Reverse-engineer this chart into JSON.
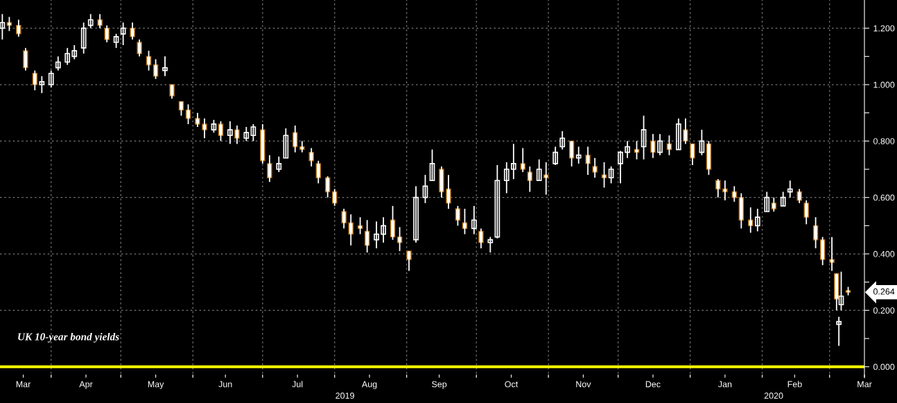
{
  "chart_data": {
    "type": "candlestick",
    "color": "#ffffff",
    "grid": true,
    "annotations": [
      "UK 10-year bond yields",
      {
        "text": "0.264",
        "x": "2020-03-09",
        "y": 0.264
      },
      "2019",
      "2020"
    ],
    "ref_lines": [
      {
        "axis": "y",
        "value": 0,
        "color": "#ffff00"
      }
    ],
    "xlim": [
      "2019-03-10",
      "2020-03-16"
    ],
    "ylim": [
      -0.04,
      1.3
    ],
    "yticks": [
      {
        "value": 0,
        "label": "0.000"
      },
      {
        "value": 0.1,
        "label": null
      },
      {
        "value": 0.2,
        "label": "0.200"
      },
      {
        "value": 0.3,
        "label": null
      },
      {
        "value": 0.4,
        "label": "0.400"
      },
      {
        "value": 0.5,
        "label": null
      },
      {
        "value": 0.6,
        "label": "0.600"
      },
      {
        "value": 0.7,
        "label": null
      },
      {
        "value": 0.8,
        "label": "0.800"
      },
      {
        "value": 0.9,
        "label": null
      },
      {
        "value": 1.0,
        "label": "1.000"
      },
      {
        "value": 1.1,
        "label": null
      },
      {
        "value": 1.2,
        "label": "1.200"
      }
    ],
    "xticks": [
      {
        "value": "2019-03-20",
        "label": "Mar"
      },
      {
        "value": "2019-04-01",
        "label": null
      },
      {
        "value": "2019-04-16",
        "label": "Apr"
      },
      {
        "value": "2019-05-01",
        "label": null
      },
      {
        "value": "2019-05-16",
        "label": "May"
      },
      {
        "value": "2019-06-01",
        "label": null
      },
      {
        "value": "2019-06-15",
        "label": "Jun"
      },
      {
        "value": "2019-07-01",
        "label": null
      },
      {
        "value": "2019-07-16",
        "label": "Jul"
      },
      {
        "value": "2019-08-01",
        "label": null
      },
      {
        "value": "2019-08-16",
        "label": "Aug"
      },
      {
        "value": "2019-09-01",
        "label": null
      },
      {
        "value": "2019-09-15",
        "label": "Sep"
      },
      {
        "value": "2019-10-01",
        "label": null
      },
      {
        "value": "2019-10-16",
        "label": "Oct"
      },
      {
        "value": "2019-11-01",
        "label": null
      },
      {
        "value": "2019-11-16",
        "label": "Nov"
      },
      {
        "value": "2019-12-01",
        "label": null
      },
      {
        "value": "2019-12-16",
        "label": "Dec"
      },
      {
        "value": "2020-01-01",
        "label": null
      },
      {
        "value": "2020-01-16",
        "label": "Jan"
      },
      {
        "value": "2020-02-01",
        "label": null
      },
      {
        "value": "2020-02-15",
        "label": "Feb"
      },
      {
        "value": "2020-03-01",
        "label": null
      },
      {
        "value": "2020-03-16",
        "label": "Mar"
      }
    ],
    "x": [
      "2019-03-11",
      "2019-03-14",
      "2019-03-18",
      "2019-03-21",
      "2019-03-25",
      "2019-03-28",
      "2019-04-01",
      "2019-04-04",
      "2019-04-08",
      "2019-04-11",
      "2019-04-15",
      "2019-04-18",
      "2019-04-22",
      "2019-04-25",
      "2019-04-29",
      "2019-05-02",
      "2019-05-06",
      "2019-05-09",
      "2019-05-13",
      "2019-05-16",
      "2019-05-20",
      "2019-05-23",
      "2019-05-27",
      "2019-05-30",
      "2019-06-03",
      "2019-06-06",
      "2019-06-10",
      "2019-06-13",
      "2019-06-17",
      "2019-06-20",
      "2019-06-24",
      "2019-06-27",
      "2019-07-01",
      "2019-07-04",
      "2019-07-08",
      "2019-07-11",
      "2019-07-15",
      "2019-07-18",
      "2019-07-22",
      "2019-07-25",
      "2019-07-29",
      "2019-08-01",
      "2019-08-05",
      "2019-08-08",
      "2019-08-12",
      "2019-08-15",
      "2019-08-19",
      "2019-08-22",
      "2019-08-26",
      "2019-08-29",
      "2019-09-02",
      "2019-09-05",
      "2019-09-09",
      "2019-09-12",
      "2019-09-16",
      "2019-09-19",
      "2019-09-23",
      "2019-09-26",
      "2019-09-30",
      "2019-10-03",
      "2019-10-07",
      "2019-10-10",
      "2019-10-14",
      "2019-10-17",
      "2019-10-21",
      "2019-10-24",
      "2019-10-28",
      "2019-10-31",
      "2019-11-04",
      "2019-11-07",
      "2019-11-11",
      "2019-11-14",
      "2019-11-18",
      "2019-11-21",
      "2019-11-25",
      "2019-11-28",
      "2019-12-02",
      "2019-12-05",
      "2019-12-09",
      "2019-12-12",
      "2019-12-16",
      "2019-12-19",
      "2019-12-23",
      "2019-12-27",
      "2019-12-30",
      "2020-01-02",
      "2020-01-06",
      "2020-01-09",
      "2020-01-13",
      "2020-01-16",
      "2020-01-20",
      "2020-01-23",
      "2020-01-27",
      "2020-01-30",
      "2020-02-03",
      "2020-02-06",
      "2020-02-10",
      "2020-02-13",
      "2020-02-17",
      "2020-02-20",
      "2020-02-24",
      "2020-02-27",
      "2020-03-02",
      "2020-03-04",
      "2020-03-05",
      "2020-03-06",
      "2020-03-09"
    ],
    "ohlc": [
      [
        1.2,
        1.25,
        1.16,
        1.22
      ],
      [
        1.22,
        1.24,
        1.19,
        1.21
      ],
      [
        1.21,
        1.23,
        1.17,
        1.18
      ],
      [
        1.12,
        1.13,
        1.05,
        1.06
      ],
      [
        1.04,
        1.05,
        0.98,
        1.0
      ],
      [
        1.0,
        1.03,
        0.97,
        1.01
      ],
      [
        1.0,
        1.05,
        0.99,
        1.04
      ],
      [
        1.06,
        1.1,
        1.05,
        1.08
      ],
      [
        1.08,
        1.13,
        1.07,
        1.11
      ],
      [
        1.1,
        1.14,
        1.09,
        1.12
      ],
      [
        1.13,
        1.22,
        1.11,
        1.2
      ],
      [
        1.21,
        1.25,
        1.2,
        1.23
      ],
      [
        1.23,
        1.25,
        1.2,
        1.21
      ],
      [
        1.2,
        1.21,
        1.15,
        1.16
      ],
      [
        1.15,
        1.18,
        1.13,
        1.17
      ],
      [
        1.18,
        1.22,
        1.14,
        1.2
      ],
      [
        1.2,
        1.22,
        1.16,
        1.17
      ],
      [
        1.15,
        1.16,
        1.1,
        1.11
      ],
      [
        1.1,
        1.12,
        1.05,
        1.07
      ],
      [
        1.07,
        1.09,
        1.02,
        1.03
      ],
      [
        1.05,
        1.1,
        1.03,
        1.06
      ],
      [
        1.0,
        1.0,
        0.95,
        0.96
      ],
      [
        0.94,
        0.94,
        0.89,
        0.91
      ],
      [
        0.91,
        0.93,
        0.86,
        0.88
      ],
      [
        0.88,
        0.9,
        0.85,
        0.86
      ],
      [
        0.86,
        0.88,
        0.81,
        0.84
      ],
      [
        0.84,
        0.875,
        0.83,
        0.86
      ],
      [
        0.86,
        0.87,
        0.8,
        0.82
      ],
      [
        0.82,
        0.87,
        0.79,
        0.84
      ],
      [
        0.84,
        0.855,
        0.79,
        0.81
      ],
      [
        0.81,
        0.85,
        0.8,
        0.83
      ],
      [
        0.82,
        0.86,
        0.8,
        0.85
      ],
      [
        0.84,
        0.86,
        0.72,
        0.73
      ],
      [
        0.72,
        0.75,
        0.655,
        0.67
      ],
      [
        0.7,
        0.745,
        0.69,
        0.72
      ],
      [
        0.74,
        0.845,
        0.74,
        0.82
      ],
      [
        0.83,
        0.855,
        0.76,
        0.78
      ],
      [
        0.78,
        0.8,
        0.76,
        0.77
      ],
      [
        0.76,
        0.775,
        0.71,
        0.73
      ],
      [
        0.72,
        0.73,
        0.65,
        0.67
      ],
      [
        0.67,
        0.675,
        0.6,
        0.62
      ],
      [
        0.62,
        0.63,
        0.57,
        0.58
      ],
      [
        0.55,
        0.56,
        0.49,
        0.51
      ],
      [
        0.51,
        0.54,
        0.43,
        0.47
      ],
      [
        0.5,
        0.53,
        0.47,
        0.49
      ],
      [
        0.48,
        0.52,
        0.405,
        0.43
      ],
      [
        0.45,
        0.515,
        0.42,
        0.47
      ],
      [
        0.47,
        0.53,
        0.44,
        0.5
      ],
      [
        0.52,
        0.57,
        0.45,
        0.46
      ],
      [
        0.46,
        0.495,
        0.41,
        0.44
      ],
      [
        0.41,
        0.41,
        0.34,
        0.38
      ],
      [
        0.45,
        0.64,
        0.44,
        0.6
      ],
      [
        0.6,
        0.68,
        0.58,
        0.64
      ],
      [
        0.66,
        0.77,
        0.66,
        0.72
      ],
      [
        0.7,
        0.71,
        0.6,
        0.62
      ],
      [
        0.63,
        0.68,
        0.56,
        0.58
      ],
      [
        0.56,
        0.57,
        0.5,
        0.52
      ],
      [
        0.51,
        0.56,
        0.47,
        0.49
      ],
      [
        0.49,
        0.57,
        0.47,
        0.52
      ],
      [
        0.48,
        0.49,
        0.42,
        0.44
      ],
      [
        0.44,
        0.46,
        0.405,
        0.45
      ],
      [
        0.46,
        0.715,
        0.455,
        0.66
      ],
      [
        0.66,
        0.725,
        0.615,
        0.7
      ],
      [
        0.7,
        0.79,
        0.665,
        0.72
      ],
      [
        0.72,
        0.775,
        0.69,
        0.7
      ],
      [
        0.69,
        0.71,
        0.62,
        0.66
      ],
      [
        0.66,
        0.735,
        0.66,
        0.7
      ],
      [
        0.68,
        0.725,
        0.61,
        0.67
      ],
      [
        0.72,
        0.78,
        0.715,
        0.76
      ],
      [
        0.78,
        0.835,
        0.77,
        0.81
      ],
      [
        0.8,
        0.8,
        0.71,
        0.74
      ],
      [
        0.74,
        0.78,
        0.72,
        0.75
      ],
      [
        0.75,
        0.78,
        0.68,
        0.72
      ],
      [
        0.71,
        0.74,
        0.67,
        0.69
      ],
      [
        0.68,
        0.725,
        0.635,
        0.67
      ],
      [
        0.67,
        0.71,
        0.65,
        0.7
      ],
      [
        0.72,
        0.765,
        0.65,
        0.76
      ],
      [
        0.76,
        0.8,
        0.74,
        0.78
      ],
      [
        0.77,
        0.8,
        0.735,
        0.76
      ],
      [
        0.78,
        0.89,
        0.735,
        0.84
      ],
      [
        0.8,
        0.825,
        0.74,
        0.76
      ],
      [
        0.76,
        0.825,
        0.75,
        0.8
      ],
      [
        0.79,
        0.82,
        0.75,
        0.77
      ],
      [
        0.77,
        0.88,
        0.77,
        0.86
      ],
      [
        0.84,
        0.88,
        0.79,
        0.8
      ],
      [
        0.79,
        0.79,
        0.715,
        0.74
      ],
      [
        0.76,
        0.84,
        0.75,
        0.8
      ],
      [
        0.79,
        0.8,
        0.68,
        0.7
      ],
      [
        0.66,
        0.665,
        0.6,
        0.63
      ],
      [
        0.63,
        0.66,
        0.59,
        0.62
      ],
      [
        0.62,
        0.64,
        0.585,
        0.6
      ],
      [
        0.6,
        0.615,
        0.49,
        0.52
      ],
      [
        0.52,
        0.565,
        0.475,
        0.5
      ],
      [
        0.5,
        0.56,
        0.48,
        0.53
      ],
      [
        0.55,
        0.62,
        0.55,
        0.6
      ],
      [
        0.58,
        0.6,
        0.55,
        0.56
      ],
      [
        0.57,
        0.62,
        0.57,
        0.6
      ],
      [
        0.62,
        0.66,
        0.6,
        0.63
      ],
      [
        0.62,
        0.63,
        0.58,
        0.59
      ],
      [
        0.58,
        0.59,
        0.505,
        0.53
      ],
      [
        0.5,
        0.53,
        0.42,
        0.45
      ],
      [
        0.45,
        0.46,
        0.36,
        0.38
      ],
      [
        0.38,
        0.46,
        0.34,
        0.37
      ],
      [
        0.33,
        0.33,
        0.2,
        0.24
      ],
      [
        0.15,
        0.177,
        0.074,
        0.16
      ],
      [
        0.22,
        0.337,
        0.2,
        0.25
      ],
      [
        0.27,
        0.283,
        0.253,
        0.264
      ]
    ]
  }
}
